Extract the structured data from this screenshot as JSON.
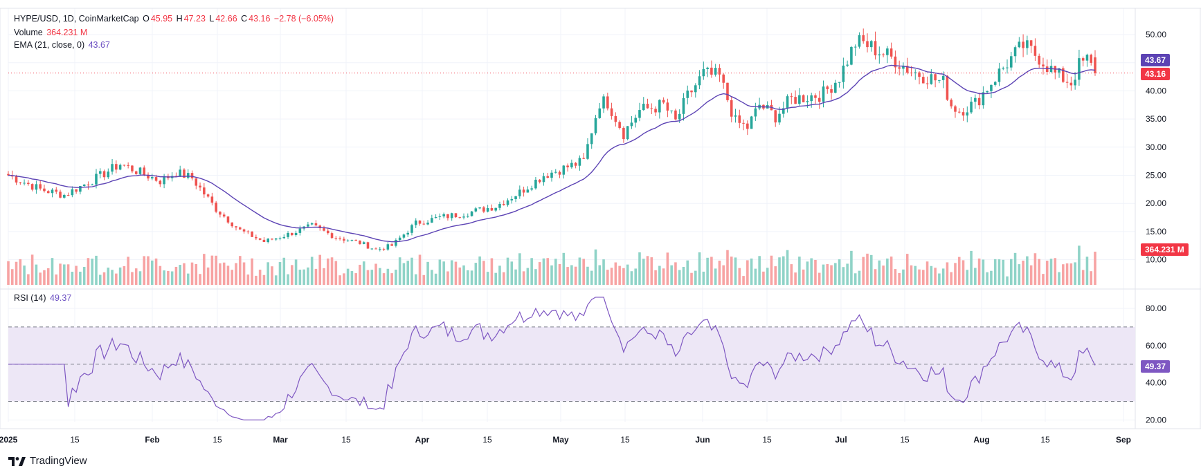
{
  "header": {
    "symbol": "HYPE/USD, 1D, CoinMarketCap",
    "open_label": "O",
    "open": "45.95",
    "high_label": "H",
    "high": "47.23",
    "low_label": "L",
    "low": "42.66",
    "close_label": "C",
    "close": "43.16",
    "change": "−2.78 (−6.05%)",
    "volume_label": "Volume",
    "volume": "364.231 M",
    "ema_label": "EMA (21, close, 0)",
    "ema": "43.67",
    "rsi_label": "RSI (14)",
    "rsi": "49.37"
  },
  "tags": {
    "ema_price": "43.67",
    "last_price": "43.16",
    "volume": "364.231 M",
    "rsi": "49.37"
  },
  "brand": {
    "name": "TradingView"
  },
  "colors": {
    "up": "#26a69a",
    "down": "#ef5350",
    "vol_up": "#8fd3c7",
    "vol_down": "#f7a3a3",
    "ema": "#5c43b4",
    "rsi": "#7e57c2",
    "rsi_band": "#ede7f6",
    "grid": "#f0f3fa"
  },
  "chart_data": {
    "type": "candlestick",
    "price_axis": {
      "ticks": [
        "50.00",
        "45.00",
        "40.00",
        "35.00",
        "30.00",
        "25.00",
        "20.00",
        "15.00",
        "10.00"
      ]
    },
    "rsi_axis": {
      "ticks": [
        "80.00",
        "60.00",
        "40.00",
        "20.00"
      ],
      "bands": [
        70,
        50,
        30
      ]
    },
    "x_ticks": [
      "2025",
      "15",
      "Feb",
      "15",
      "Mar",
      "15",
      "Apr",
      "15",
      "May",
      "15",
      "Jun",
      "15",
      "Jul",
      "15",
      "Aug",
      "15",
      "Sep"
    ],
    "keypoints": [
      [
        0,
        25.0
      ],
      [
        8,
        22.5
      ],
      [
        14,
        21.5
      ],
      [
        22,
        24.5
      ],
      [
        28,
        27.0
      ],
      [
        38,
        24.0
      ],
      [
        42,
        25.5
      ],
      [
        46,
        24.5
      ],
      [
        52,
        19.0
      ],
      [
        58,
        15.2
      ],
      [
        64,
        13.2
      ],
      [
        70,
        14.5
      ],
      [
        76,
        16.0
      ],
      [
        82,
        14.0
      ],
      [
        88,
        13.0
      ],
      [
        92,
        11.8
      ],
      [
        96,
        12.5
      ],
      [
        102,
        16.5
      ],
      [
        108,
        17.5
      ],
      [
        114,
        18.2
      ],
      [
        122,
        19.5
      ],
      [
        128,
        22.0
      ],
      [
        134,
        25.0
      ],
      [
        140,
        26.5
      ],
      [
        144,
        27.5
      ],
      [
        146,
        33.0
      ],
      [
        148,
        38.0
      ],
      [
        150,
        38.0
      ],
      [
        154,
        32.5
      ],
      [
        158,
        36.5
      ],
      [
        164,
        37.5
      ],
      [
        167,
        34.5
      ],
      [
        170,
        39.0
      ],
      [
        174,
        43.0
      ],
      [
        178,
        42.5
      ],
      [
        182,
        34.5
      ],
      [
        185,
        33.5
      ],
      [
        188,
        37.5
      ],
      [
        192,
        35.5
      ],
      [
        196,
        38.5
      ],
      [
        204,
        39.5
      ],
      [
        208,
        42.5
      ],
      [
        212,
        48.5
      ],
      [
        214,
        48.5
      ],
      [
        218,
        47.0
      ],
      [
        222,
        45.5
      ],
      [
        226,
        43.5
      ],
      [
        230,
        42.5
      ],
      [
        234,
        41.5
      ],
      [
        236,
        37.5
      ],
      [
        238,
        36.5
      ],
      [
        242,
        37.8
      ],
      [
        246,
        41.5
      ],
      [
        250,
        45.0
      ],
      [
        254,
        48.0
      ],
      [
        258,
        46.0
      ],
      [
        262,
        43.0
      ],
      [
        266,
        41.5
      ],
      [
        268,
        44.5
      ],
      [
        270,
        45.5
      ],
      [
        272,
        43.16
      ]
    ],
    "ohlc_last": {
      "open": 45.95,
      "high": 47.23,
      "low": 42.66,
      "close": 43.16
    },
    "ema_last": 43.67,
    "volume_last": 364.231,
    "rsi_last": 49.37
  }
}
